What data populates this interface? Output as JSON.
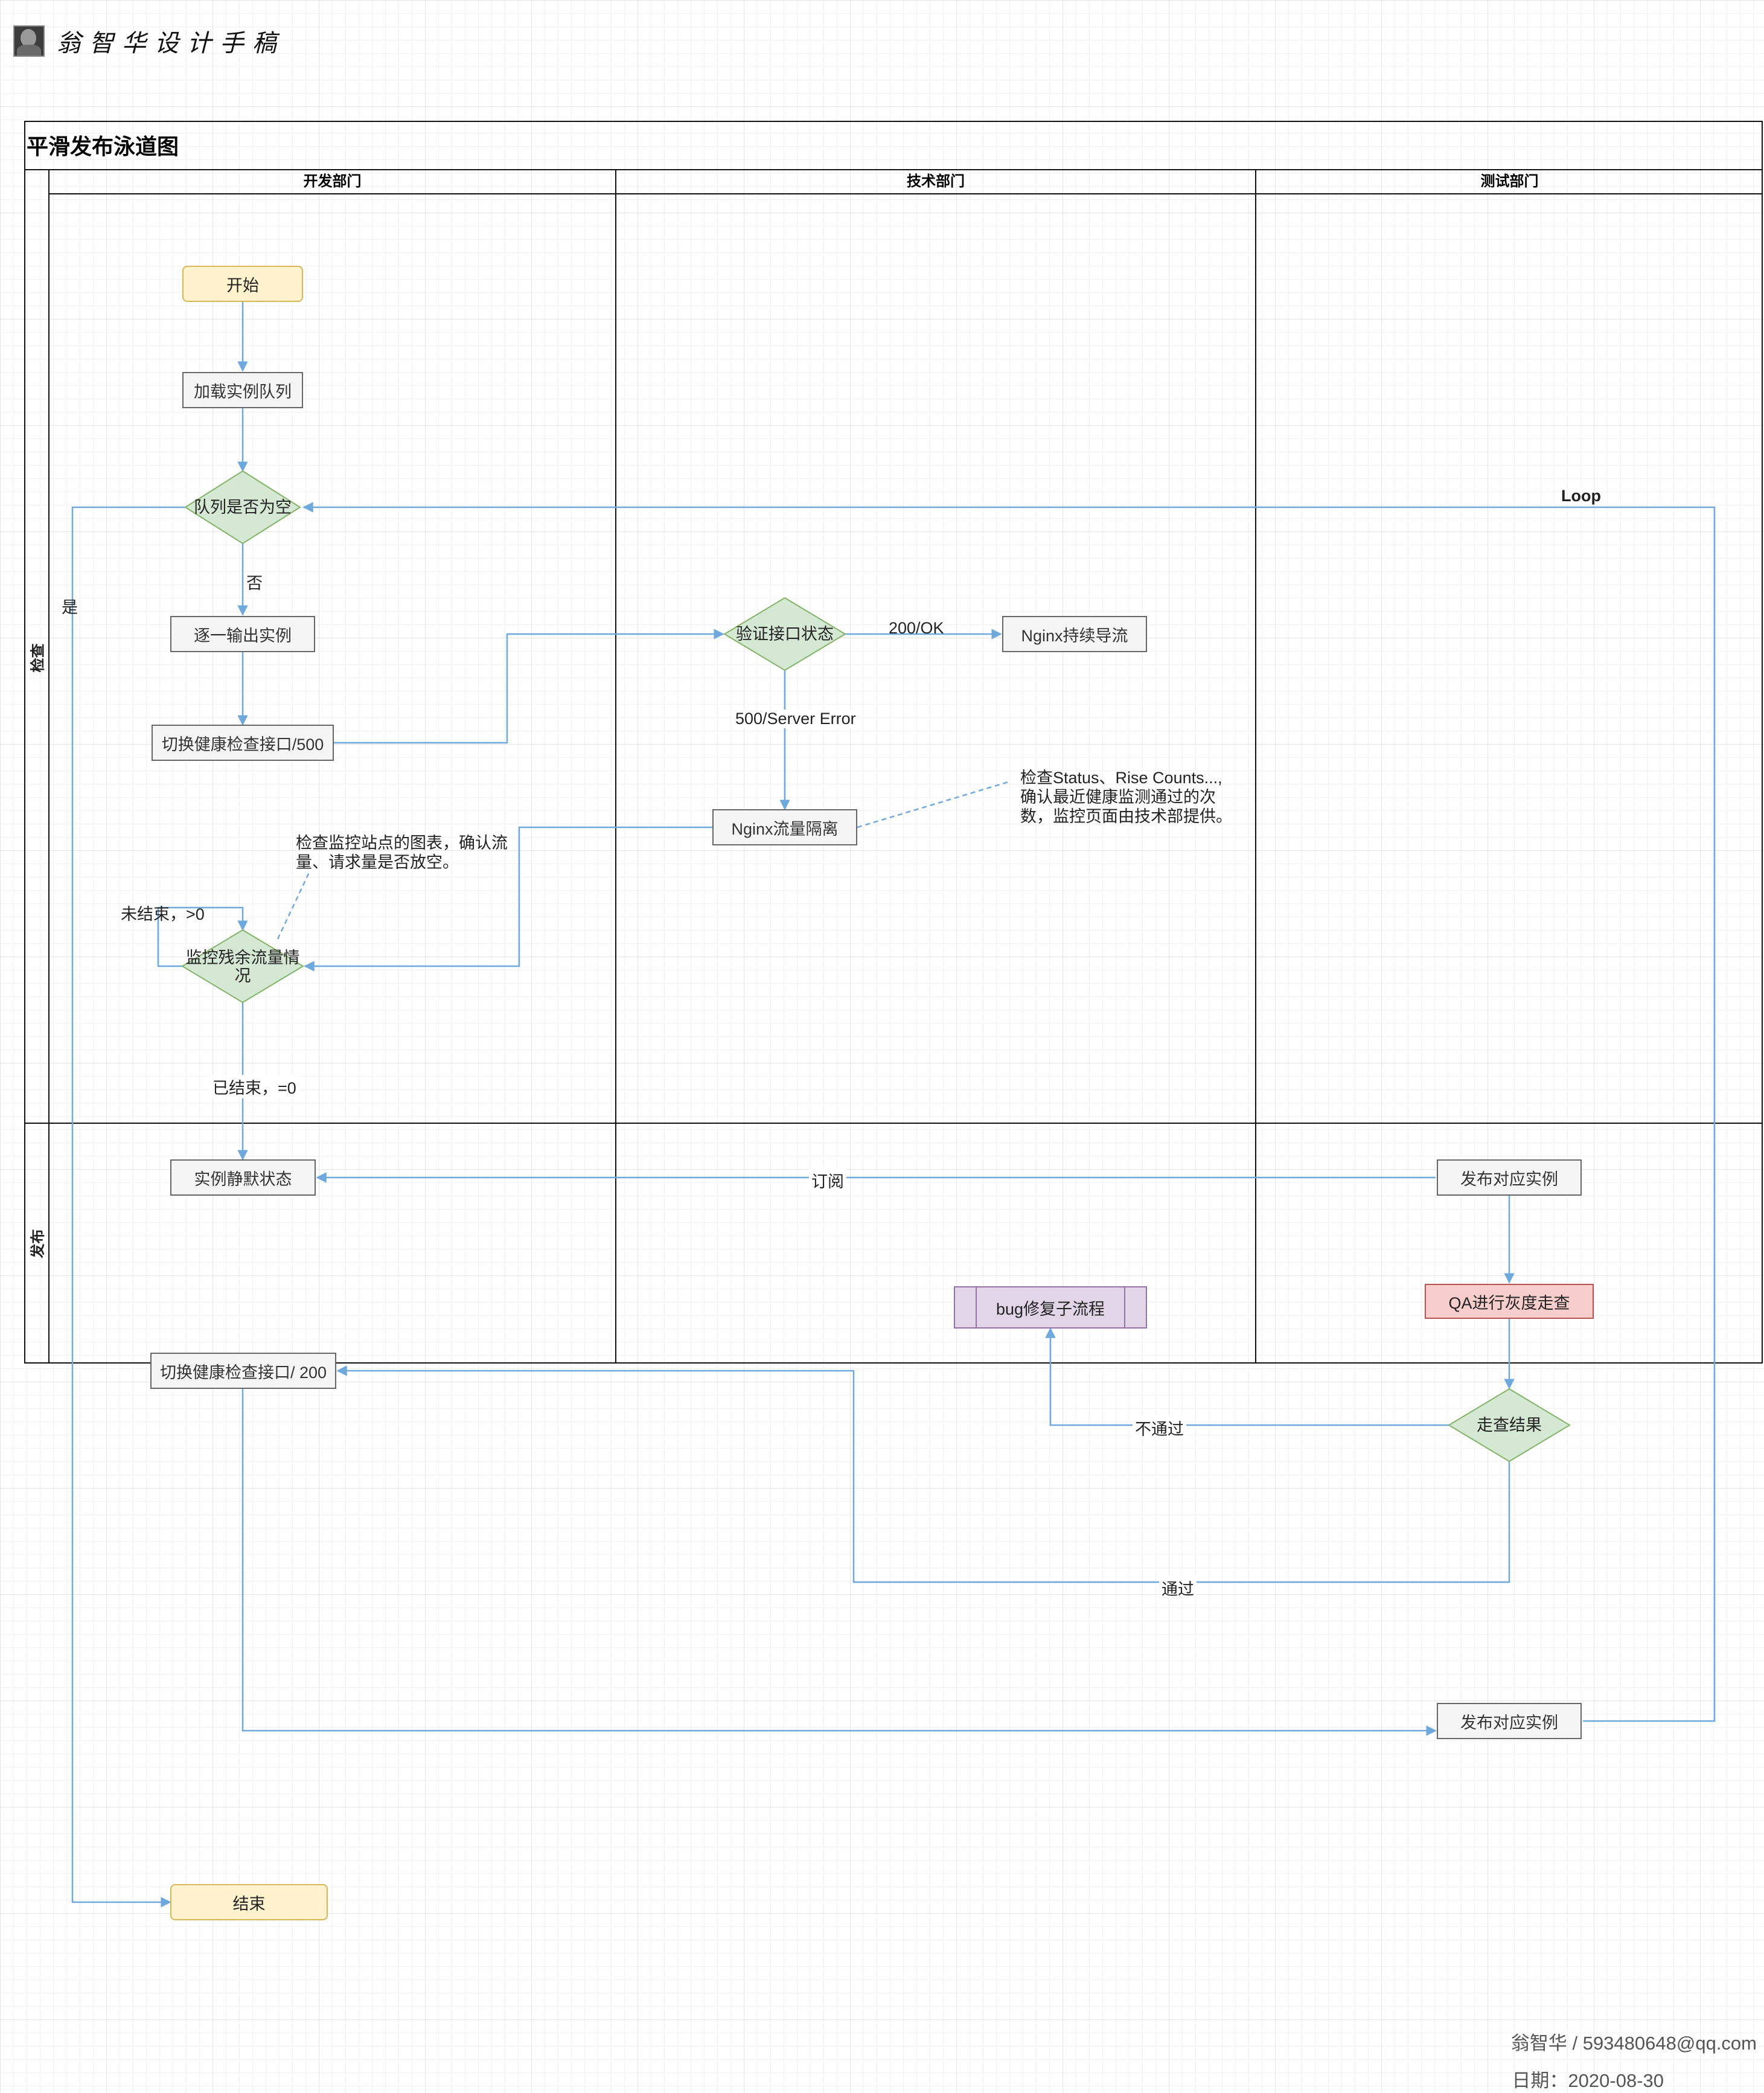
{
  "brand": {
    "text": "翁智华设计手稿"
  },
  "diagram": {
    "title": "平滑发布泳道图",
    "lanes": [
      "开发部门",
      "技术部门",
      "测试部门"
    ],
    "rows": [
      "检查",
      "发布"
    ]
  },
  "nodes": {
    "start": "开始",
    "load_queue": "加载实例队列",
    "queue_empty": "队列是否为空",
    "output_instances": "逐一输出实例",
    "switch_500": "切换健康检查接口/500",
    "verify_status": "验证接口状态",
    "nginx_keep": "Nginx持续导流",
    "nginx_isolate": "Nginx流量隔离",
    "monitor_traffic": "监控残余流量情况",
    "instance_silent": "实例静默状态",
    "publish_instance_1": "发布对应实例",
    "bug_fix": "bug修复子流程",
    "qa_gray": "QA进行灰度走查",
    "switch_200": "切换健康检查接口/ 200",
    "check_result": "走查结果",
    "publish_instance_2": "发布对应实例",
    "end": "结束"
  },
  "edge_labels": {
    "no": "否",
    "yes": "是",
    "ok_200": "200/OK",
    "error_500": "500/Server Error",
    "not_finished": "未结束，>0",
    "finished": "已结束，=0",
    "subscribe": "订阅",
    "not_pass": "不通过",
    "pass": "通过",
    "loop": "Loop"
  },
  "notes": {
    "nginx_note": [
      "检查Status、Rise Counts...,",
      "确认最近健康监测通过的次",
      "数，监控页面由技术部提供。"
    ],
    "monitor_note": [
      "检查监控站点的图表，确认流",
      "量、请求量是否放空。"
    ]
  },
  "footer": {
    "author": "翁智华 / 593480648@qq.com",
    "date": "日期：2020-08-30"
  },
  "colors": {
    "edge": "#6fa8dc",
    "decision_fill": "#d5e8d4",
    "terminal_fill": "#fff2cc",
    "danger_fill": "#f8cecc",
    "subprocess_fill": "#e1d5e7",
    "process_fill": "#f5f5f5"
  }
}
